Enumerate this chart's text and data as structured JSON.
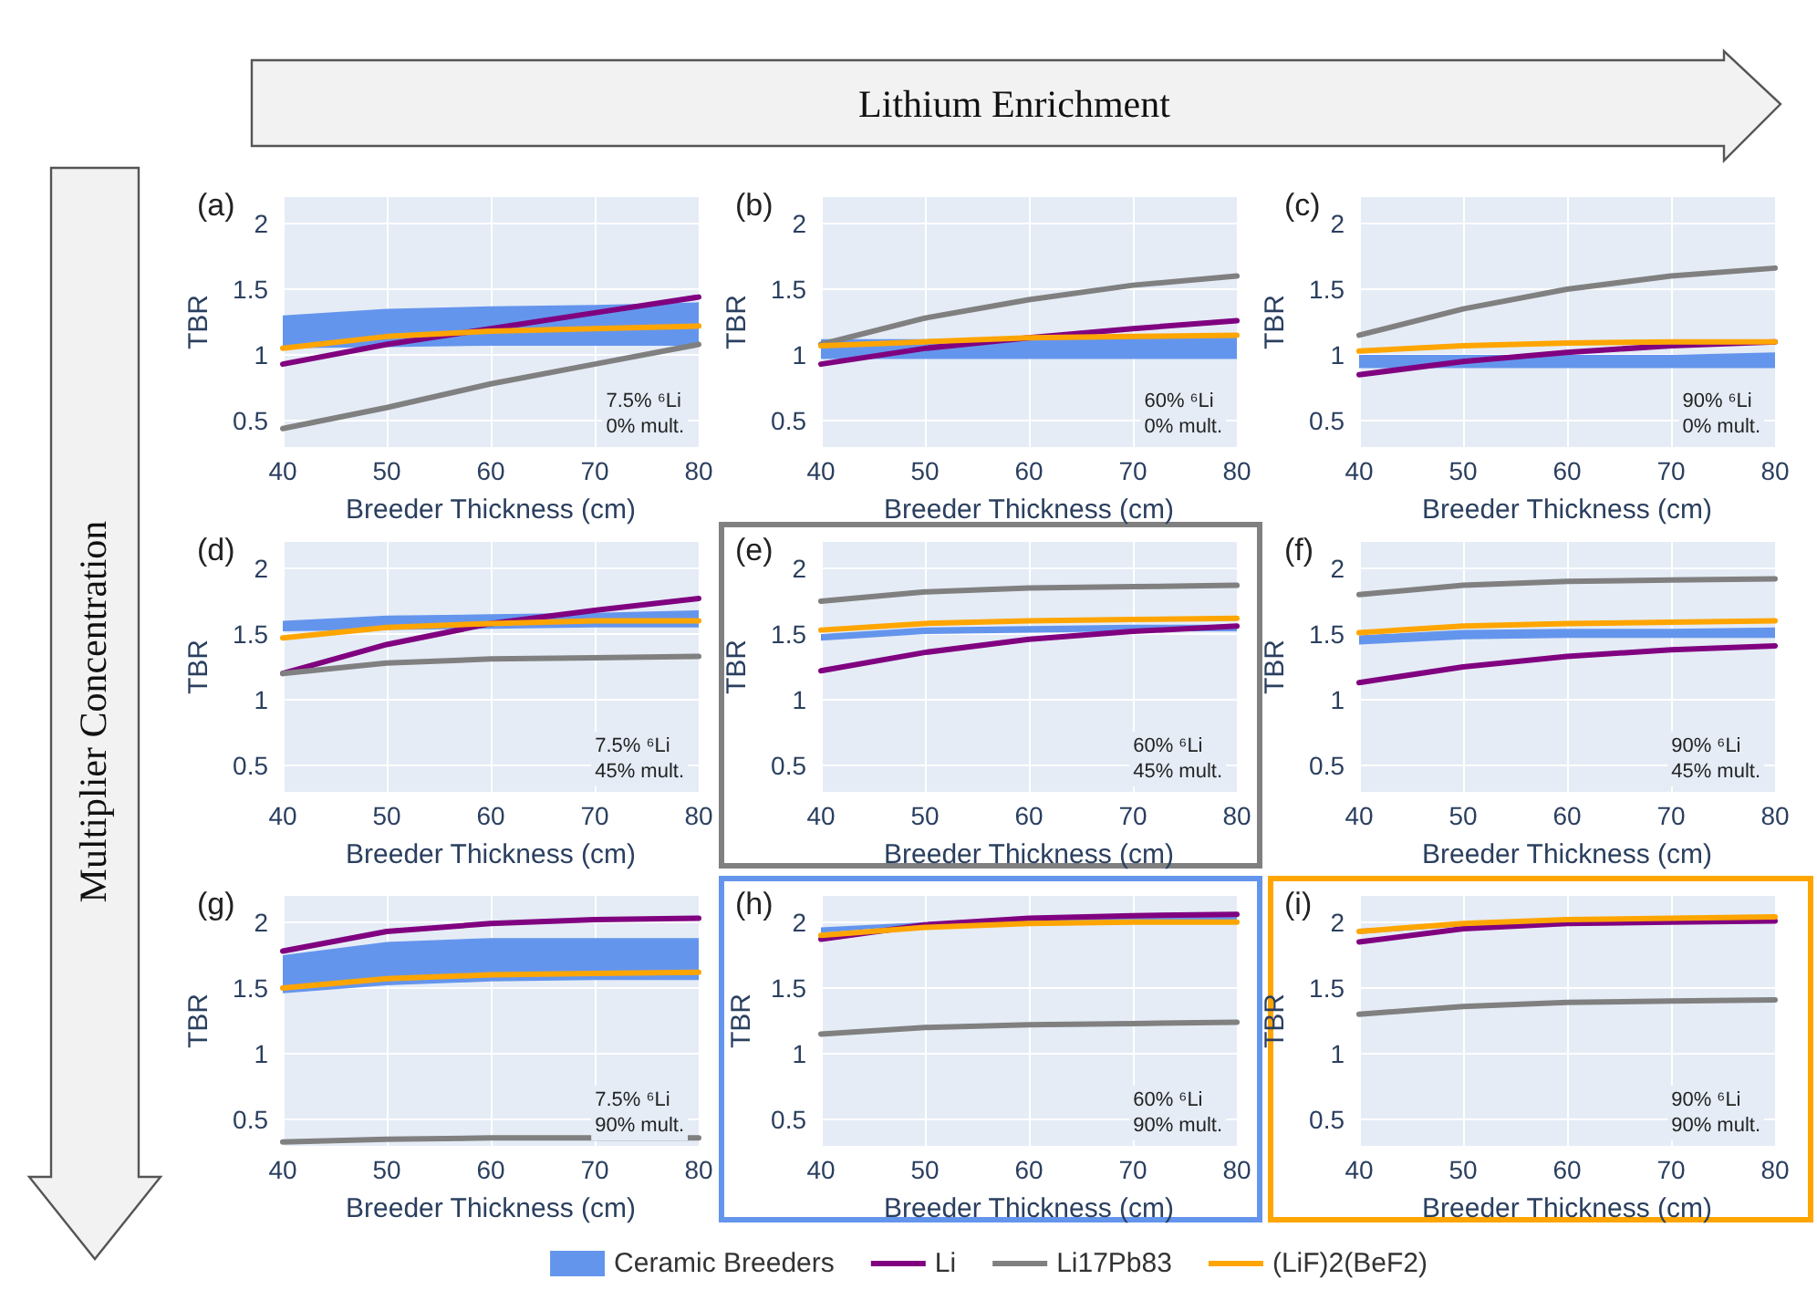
{
  "chart_data": [
    {
      "type": "line",
      "title": "(a)",
      "xlabel": "Breeder Thickness (cm)",
      "ylabel": "TBR",
      "x": [
        40,
        50,
        60,
        70,
        80
      ],
      "xlim": [
        40,
        80
      ],
      "xticks": [
        40,
        50,
        60,
        70,
        80
      ],
      "ylim": [
        0.3,
        2.2
      ],
      "yticks": [
        0.5,
        1,
        1.5,
        2
      ],
      "grid": true,
      "marker": "none",
      "line_style": "solid",
      "annotations": [
        "Lithium Enrichment",
        "Multiplier Concentration",
        "7.5% ⁶Li",
        "0% mult."
      ],
      "series": [
        {
          "type": "area",
          "color": "#6495ed",
          "values": [
            null,
            null,
            null,
            null,
            null
          ],
          "lower": [
            1.05,
            1.06,
            1.07,
            1.07,
            1.07
          ],
          "upper": [
            1.3,
            1.35,
            1.37,
            1.38,
            1.4
          ]
        },
        {
          "color": "#800080",
          "values": [
            0.93,
            1.08,
            1.2,
            1.32,
            1.44
          ]
        },
        {
          "color": "#808080",
          "values": [
            0.44,
            0.6,
            0.78,
            0.93,
            1.08
          ]
        },
        {
          "color": "#ffa500",
          "values": [
            1.05,
            1.14,
            1.18,
            1.2,
            1.22
          ]
        }
      ]
    },
    {
      "type": "line",
      "title": "(b)",
      "xlabel": "Breeder Thickness (cm)",
      "ylabel": "TBR",
      "x": [
        40,
        50,
        60,
        70,
        80
      ],
      "xlim": [
        40,
        80
      ],
      "xticks": [
        40,
        50,
        60,
        70,
        80
      ],
      "ylim": [
        0.3,
        2.2
      ],
      "yticks": [
        0.5,
        1,
        1.5,
        2
      ],
      "grid": true,
      "marker": "none",
      "line_style": "solid",
      "annotations": [
        "60% ⁶Li",
        "0% mult."
      ],
      "series": [
        {
          "type": "area",
          "color": "#6495ed",
          "values": [
            null,
            null,
            null,
            null,
            null
          ],
          "lower": [
            0.97,
            0.97,
            0.97,
            0.97,
            0.97
          ],
          "upper": [
            1.12,
            1.12,
            1.13,
            1.14,
            1.15
          ]
        },
        {
          "color": "#800080",
          "values": [
            0.93,
            1.05,
            1.13,
            1.2,
            1.26
          ]
        },
        {
          "color": "#808080",
          "values": [
            1.08,
            1.28,
            1.42,
            1.53,
            1.6
          ]
        },
        {
          "color": "#ffa500",
          "values": [
            1.07,
            1.1,
            1.13,
            1.14,
            1.15
          ]
        }
      ]
    },
    {
      "type": "line",
      "title": "(c)",
      "xlabel": "Breeder Thickness (cm)",
      "ylabel": "TBR",
      "x": [
        40,
        50,
        60,
        70,
        80
      ],
      "xlim": [
        40,
        80
      ],
      "xticks": [
        40,
        50,
        60,
        70,
        80
      ],
      "ylim": [
        0.3,
        2.2
      ],
      "yticks": [
        0.5,
        1,
        1.5,
        2
      ],
      "grid": true,
      "marker": "none",
      "line_style": "solid",
      "annotations": [
        "90% ⁶Li",
        "0% mult."
      ],
      "series": [
        {
          "type": "area",
          "color": "#6495ed",
          "values": [
            null,
            null,
            null,
            null,
            null
          ],
          "lower": [
            0.9,
            0.9,
            0.9,
            0.9,
            0.9
          ],
          "upper": [
            1.0,
            1.0,
            1.0,
            1.0,
            1.02
          ]
        },
        {
          "color": "#800080",
          "values": [
            0.85,
            0.95,
            1.02,
            1.07,
            1.1
          ]
        },
        {
          "color": "#808080",
          "values": [
            1.15,
            1.35,
            1.5,
            1.6,
            1.66
          ]
        },
        {
          "color": "#ffa500",
          "values": [
            1.03,
            1.07,
            1.09,
            1.1,
            1.1
          ]
        }
      ]
    },
    {
      "type": "line",
      "title": "(d)",
      "xlabel": "Breeder Thickness (cm)",
      "ylabel": "TBR",
      "x": [
        40,
        50,
        60,
        70,
        80
      ],
      "xlim": [
        40,
        80
      ],
      "xticks": [
        40,
        50,
        60,
        70,
        80
      ],
      "ylim": [
        0.3,
        2.2
      ],
      "yticks": [
        0.5,
        1,
        1.5,
        2
      ],
      "grid": true,
      "marker": "none",
      "line_style": "solid",
      "annotations": [
        "7.5% ⁶Li",
        "45% mult."
      ],
      "series": [
        {
          "type": "area",
          "color": "#6495ed",
          "values": [
            null,
            null,
            null,
            null,
            null
          ],
          "lower": [
            1.52,
            1.53,
            1.54,
            1.55,
            1.55
          ],
          "upper": [
            1.6,
            1.64,
            1.65,
            1.66,
            1.68
          ]
        },
        {
          "color": "#800080",
          "values": [
            1.2,
            1.42,
            1.58,
            1.68,
            1.77
          ]
        },
        {
          "color": "#808080",
          "values": [
            1.2,
            1.28,
            1.31,
            1.32,
            1.33
          ]
        },
        {
          "color": "#ffa500",
          "values": [
            1.47,
            1.55,
            1.58,
            1.6,
            1.6
          ]
        }
      ]
    },
    {
      "type": "line",
      "title": "(e)",
      "xlabel": "Breeder Thickness (cm)",
      "ylabel": "TBR",
      "x": [
        40,
        50,
        60,
        70,
        80
      ],
      "xlim": [
        40,
        80
      ],
      "xticks": [
        40,
        50,
        60,
        70,
        80
      ],
      "ylim": [
        0.3,
        2.2
      ],
      "yticks": [
        0.5,
        1,
        1.5,
        2
      ],
      "grid": true,
      "marker": "none",
      "line_style": "solid",
      "annotations": [
        "60% ⁶Li",
        "45% mult."
      ],
      "series": [
        {
          "type": "area",
          "color": "#6495ed",
          "values": [
            null,
            null,
            null,
            null,
            null
          ],
          "lower": [
            1.45,
            1.5,
            1.51,
            1.52,
            1.52
          ],
          "upper": [
            1.5,
            1.55,
            1.56,
            1.57,
            1.57
          ]
        },
        {
          "color": "#800080",
          "values": [
            1.22,
            1.36,
            1.46,
            1.52,
            1.56
          ]
        },
        {
          "color": "#808080",
          "values": [
            1.75,
            1.82,
            1.85,
            1.86,
            1.87
          ]
        },
        {
          "color": "#ffa500",
          "values": [
            1.53,
            1.58,
            1.6,
            1.61,
            1.62
          ]
        }
      ]
    },
    {
      "type": "line",
      "title": "(f)",
      "xlabel": "Breeder Thickness (cm)",
      "ylabel": "TBR",
      "x": [
        40,
        50,
        60,
        70,
        80
      ],
      "xlim": [
        40,
        80
      ],
      "xticks": [
        40,
        50,
        60,
        70,
        80
      ],
      "ylim": [
        0.3,
        2.2
      ],
      "yticks": [
        0.5,
        1,
        1.5,
        2
      ],
      "grid": true,
      "marker": "none",
      "line_style": "solid",
      "annotations": [
        "90% ⁶Li",
        "45% mult."
      ],
      "series": [
        {
          "type": "area",
          "color": "#6495ed",
          "values": [
            null,
            null,
            null,
            null,
            null
          ],
          "lower": [
            1.42,
            1.46,
            1.47,
            1.47,
            1.47
          ],
          "upper": [
            1.49,
            1.53,
            1.54,
            1.54,
            1.55
          ]
        },
        {
          "color": "#800080",
          "values": [
            1.13,
            1.25,
            1.33,
            1.38,
            1.41
          ]
        },
        {
          "color": "#808080",
          "values": [
            1.8,
            1.87,
            1.9,
            1.91,
            1.92
          ]
        },
        {
          "color": "#ffa500",
          "values": [
            1.51,
            1.56,
            1.58,
            1.59,
            1.6
          ]
        }
      ]
    },
    {
      "type": "line",
      "title": "(g)",
      "xlabel": "Breeder Thickness (cm)",
      "ylabel": "TBR",
      "x": [
        40,
        50,
        60,
        70,
        80
      ],
      "xlim": [
        40,
        80
      ],
      "xticks": [
        40,
        50,
        60,
        70,
        80
      ],
      "ylim": [
        0.3,
        2.2
      ],
      "yticks": [
        0.5,
        1,
        1.5,
        2
      ],
      "grid": true,
      "marker": "none",
      "line_style": "solid",
      "annotations": [
        "7.5% ⁶Li",
        "90% mult."
      ],
      "series": [
        {
          "type": "area",
          "color": "#6495ed",
          "values": [
            null,
            null,
            null,
            null,
            null
          ],
          "lower": [
            1.46,
            1.52,
            1.55,
            1.56,
            1.56
          ],
          "upper": [
            1.75,
            1.85,
            1.88,
            1.88,
            1.88
          ]
        },
        {
          "color": "#800080",
          "values": [
            1.78,
            1.93,
            1.99,
            2.02,
            2.03
          ]
        },
        {
          "color": "#808080",
          "values": [
            0.33,
            0.35,
            0.36,
            0.36,
            0.36
          ]
        },
        {
          "color": "#ffa500",
          "values": [
            1.5,
            1.57,
            1.6,
            1.61,
            1.62
          ]
        }
      ]
    },
    {
      "type": "line",
      "title": "(h)",
      "xlabel": "Breeder Thickness (cm)",
      "ylabel": "TBR",
      "x": [
        40,
        50,
        60,
        70,
        80
      ],
      "xlim": [
        40,
        80
      ],
      "xticks": [
        40,
        50,
        60,
        70,
        80
      ],
      "ylim": [
        0.3,
        2.2
      ],
      "yticks": [
        0.5,
        1,
        1.5,
        2
      ],
      "grid": true,
      "marker": "none",
      "line_style": "solid",
      "legend": "bottom",
      "annotations": [
        "60% ⁶Li",
        "90% mult."
      ],
      "series": [
        {
          "type": "area",
          "name": "Ceramic Breeders",
          "color": "#6495ed",
          "values": [
            null,
            null,
            null,
            null,
            null
          ],
          "lower": [
            1.92,
            1.98,
            2.0,
            2.01,
            2.02
          ],
          "upper": [
            1.96,
            2.0,
            2.03,
            2.04,
            2.05
          ]
        },
        {
          "name": "Li",
          "color": "#800080",
          "values": [
            1.87,
            1.98,
            2.03,
            2.05,
            2.06
          ]
        },
        {
          "name": "Li17Pb83",
          "color": "#808080",
          "values": [
            1.15,
            1.2,
            1.22,
            1.23,
            1.24
          ]
        },
        {
          "name": "(LiF)2(BeF2)",
          "color": "#ffa500",
          "values": [
            1.9,
            1.96,
            1.99,
            2.0,
            2.0
          ]
        }
      ]
    },
    {
      "type": "line",
      "title": "(i)",
      "xlabel": "Breeder Thickness (cm)",
      "ylabel": "TBR",
      "x": [
        40,
        50,
        60,
        70,
        80
      ],
      "xlim": [
        40,
        80
      ],
      "xticks": [
        40,
        50,
        60,
        70,
        80
      ],
      "ylim": [
        0.3,
        2.2
      ],
      "yticks": [
        0.5,
        1,
        1.5,
        2
      ],
      "grid": true,
      "marker": "none",
      "line_style": "solid",
      "annotations": [
        "90% ⁶Li",
        "90% mult."
      ],
      "series": [
        {
          "type": "area",
          "color": "#6495ed",
          "values": [
            null,
            null,
            null,
            null,
            null
          ],
          "lower": [
            1.91,
            1.97,
            1.99,
            2.0,
            2.01
          ],
          "upper": [
            1.95,
            1.99,
            2.01,
            2.02,
            2.03
          ]
        },
        {
          "color": "#800080",
          "values": [
            1.85,
            1.95,
            1.99,
            2.0,
            2.01
          ]
        },
        {
          "color": "#808080",
          "values": [
            1.3,
            1.36,
            1.39,
            1.4,
            1.41
          ]
        },
        {
          "color": "#ffa500",
          "values": [
            1.93,
            1.99,
            2.02,
            2.03,
            2.04
          ]
        }
      ]
    }
  ]
}
